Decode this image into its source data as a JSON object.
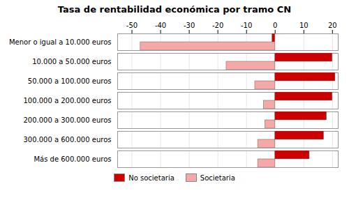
{
  "chart_data": {
    "type": "bar",
    "orientation": "horizontal",
    "title": "Tasa de rentabilidad económica por tramo CN",
    "categories": [
      "Menor o igual a 10.000 euros",
      "10.000 a 50.000 euros",
      "50.000 a 100.000 euros",
      "100.000 a 200.000 euros",
      "200.000 a 300.000 euros",
      "300.000 a 600.000 euros",
      "Más de 600.000 euros"
    ],
    "series": [
      {
        "name": "No societaria",
        "color": "#cc0000",
        "values": [
          -1.0,
          20.0,
          21.0,
          20.0,
          18.0,
          17.0,
          12.0
        ]
      },
      {
        "name": "Societaria",
        "color": "#f4a9a8",
        "values": [
          -47.0,
          -17.0,
          -7.0,
          -4.0,
          -3.5,
          -6.0,
          -6.0
        ]
      }
    ],
    "xlim": [
      -55,
      22
    ],
    "xticks": [
      -50,
      -40,
      -30,
      -20,
      -10,
      0,
      10,
      20
    ],
    "grid": true,
    "legend": "bottom"
  }
}
